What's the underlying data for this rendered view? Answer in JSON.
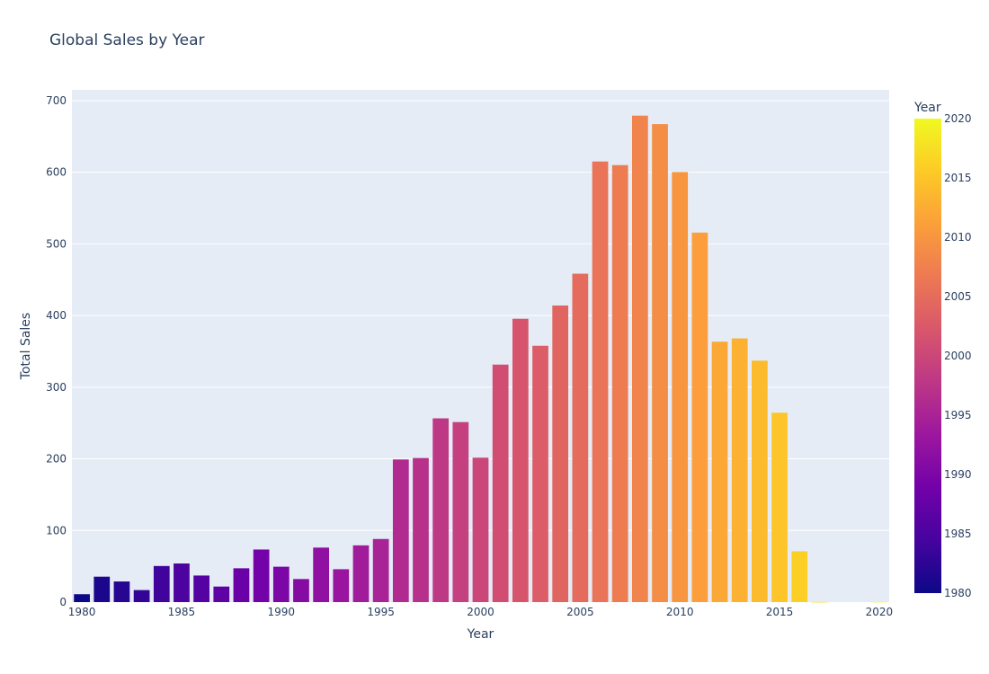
{
  "chart_data": {
    "type": "bar",
    "title": "Global Sales by Year",
    "xlabel": "Year",
    "ylabel": "Total Sales",
    "xlim": [
      1979.5,
      2020.5
    ],
    "ylim": [
      0,
      715
    ],
    "xticks": [
      1980,
      1985,
      1990,
      1995,
      2000,
      2005,
      2010,
      2015,
      2020
    ],
    "yticks": [
      0,
      100,
      200,
      300,
      400,
      500,
      600,
      700
    ],
    "grid": true,
    "colorbar": {
      "title": "Year",
      "range": [
        1980,
        2020
      ],
      "ticks": [
        1980,
        1985,
        1990,
        1995,
        2000,
        2005,
        2010,
        2015,
        2020
      ],
      "colorscale": [
        "#0d0887",
        "#46039f",
        "#7201a8",
        "#9c179e",
        "#bd3786",
        "#d8576b",
        "#ed7953",
        "#fb9f3a",
        "#fdca26",
        "#f0f921"
      ]
    },
    "x": [
      1980,
      1981,
      1982,
      1983,
      1984,
      1985,
      1986,
      1987,
      1988,
      1989,
      1990,
      1991,
      1992,
      1993,
      1994,
      1995,
      1996,
      1997,
      1998,
      1999,
      2000,
      2001,
      2002,
      2003,
      2004,
      2005,
      2006,
      2007,
      2008,
      2009,
      2010,
      2011,
      2012,
      2013,
      2014,
      2015,
      2016,
      2017,
      2020
    ],
    "values": [
      11,
      35.5,
      28.8,
      16.8,
      50.4,
      53.9,
      37.1,
      21.7,
      47.2,
      73.4,
      49.4,
      32.2,
      76.1,
      45.9,
      79.2,
      88.1,
      199.1,
      201.1,
      256.5,
      251.3,
      201.6,
      331.5,
      395.5,
      357.8,
      414,
      458.4,
      615,
      610,
      679,
      667.2,
      600.3,
      515.8,
      363.5,
      368.1,
      337,
      264.4,
      70.9,
      0.1,
      0.3
    ]
  }
}
